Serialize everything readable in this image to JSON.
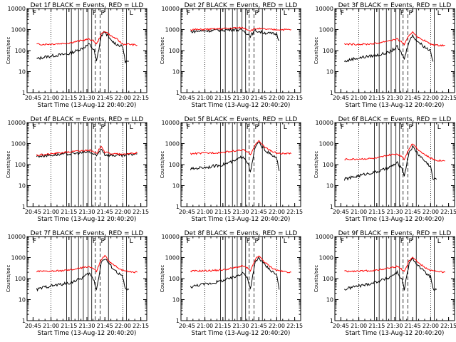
{
  "colors": {
    "events": "#000000",
    "lld": "#ff0000",
    "background": "#ffffff",
    "axis": "#000000"
  },
  "chart_data": [
    {
      "type": "line",
      "title": "Det 1f BLACK = Events, RED = LLD",
      "xlabel": "Start Time (13-Aug-12 20:40:20)",
      "ylabel": "Counts/sec",
      "yscale": "log",
      "ylim": [
        1,
        10000
      ],
      "y_ticks": [
        "1",
        "10",
        "100",
        "1000",
        "10000"
      ],
      "x_ticks": [
        "20:45",
        "21:00",
        "21:15",
        "21:30",
        "21:45",
        "22:00",
        "22:15"
      ],
      "x_range": [
        "20:40",
        "22:20"
      ],
      "marker_labels": [
        "F",
        "P",
        "F",
        "L"
      ],
      "series": [
        {
          "name": "Events",
          "color": "#000000",
          "x": [
            "20:48",
            "20:55",
            "21:05",
            "21:15",
            "21:25",
            "21:32",
            "21:36",
            "21:38",
            "21:42",
            "21:45",
            "21:50",
            "21:55",
            "22:00",
            "22:02",
            "22:05"
          ],
          "values": [
            40,
            50,
            60,
            70,
            120,
            200,
            100,
            30,
            500,
            800,
            300,
            200,
            150,
            30,
            30
          ]
        },
        {
          "name": "LLD",
          "color": "#ff0000",
          "x": [
            "20:48",
            "20:55",
            "21:05",
            "21:15",
            "21:25",
            "21:32",
            "21:36",
            "21:38",
            "21:42",
            "21:45",
            "21:50",
            "21:55",
            "22:00",
            "22:05",
            "22:12"
          ],
          "values": [
            200,
            200,
            210,
            230,
            300,
            350,
            280,
            200,
            600,
            850,
            500,
            350,
            200,
            200,
            180
          ]
        }
      ]
    },
    {
      "type": "line",
      "title": "Det 2f BLACK = Events, RED = LLD",
      "xlabel": "Start Time (13-Aug-12 20:40:20)",
      "ylabel": "Counts/sec",
      "yscale": "log",
      "ylim": [
        1,
        10000
      ],
      "y_ticks": [
        "1",
        "10",
        "100",
        "1000",
        "10000"
      ],
      "x_ticks": [
        "20:45",
        "21:00",
        "21:15",
        "21:30",
        "21:45",
        "22:00",
        "22:15"
      ],
      "x_range": [
        "20:40",
        "22:20"
      ],
      "marker_labels": [
        "F",
        "P",
        "F",
        "L"
      ],
      "series": [
        {
          "name": "Events",
          "color": "#000000",
          "x": [
            "20:48",
            "20:55",
            "21:05",
            "21:15",
            "21:25",
            "21:32",
            "21:36",
            "21:38",
            "21:42",
            "21:45",
            "21:50",
            "21:55",
            "22:00",
            "22:02"
          ],
          "values": [
            800,
            850,
            900,
            950,
            1000,
            900,
            600,
            500,
            900,
            800,
            700,
            650,
            600,
            300
          ]
        },
        {
          "name": "LLD",
          "color": "#ff0000",
          "x": [
            "20:48",
            "20:55",
            "21:05",
            "21:15",
            "21:25",
            "21:32",
            "21:36",
            "21:38",
            "21:42",
            "21:45",
            "21:50",
            "21:55",
            "22:00",
            "22:05",
            "22:12"
          ],
          "values": [
            1000,
            1000,
            1050,
            1100,
            1200,
            1200,
            1000,
            900,
            1100,
            1100,
            1050,
            1000,
            1000,
            1000,
            1000
          ]
        }
      ]
    },
    {
      "type": "line",
      "title": "Det 3f BLACK = Events, RED = LLD",
      "xlabel": "Start Time (13-Aug-12 20:40:20)",
      "ylabel": "Counts/sec",
      "yscale": "log",
      "ylim": [
        1,
        10000
      ],
      "y_ticks": [
        "1",
        "10",
        "100",
        "1000",
        "10000"
      ],
      "x_ticks": [
        "20:45",
        "21:00",
        "21:15",
        "21:30",
        "21:45",
        "22:00",
        "22:15"
      ],
      "x_range": [
        "20:40",
        "22:20"
      ],
      "marker_labels": [
        "F",
        "P",
        "F",
        "L"
      ],
      "series": [
        {
          "name": "Events",
          "color": "#000000",
          "x": [
            "20:48",
            "20:55",
            "21:05",
            "21:15",
            "21:25",
            "21:32",
            "21:36",
            "21:38",
            "21:42",
            "21:45",
            "21:50",
            "21:55",
            "22:00",
            "22:02"
          ],
          "values": [
            30,
            40,
            50,
            60,
            80,
            150,
            70,
            40,
            300,
            500,
            250,
            150,
            100,
            30
          ]
        },
        {
          "name": "LLD",
          "color": "#ff0000",
          "x": [
            "20:48",
            "20:55",
            "21:05",
            "21:15",
            "21:25",
            "21:32",
            "21:36",
            "21:38",
            "21:42",
            "21:45",
            "21:50",
            "21:55",
            "22:00",
            "22:05",
            "22:12"
          ],
          "values": [
            200,
            200,
            200,
            220,
            300,
            350,
            250,
            200,
            500,
            800,
            400,
            300,
            200,
            180,
            180
          ]
        }
      ]
    },
    {
      "type": "line",
      "title": "Det 4f BLACK = Events, RED = LLD",
      "xlabel": "Start Time (13-Aug-12 20:40:20)",
      "ylabel": "Counts/sec",
      "yscale": "log",
      "ylim": [
        1,
        10000
      ],
      "y_ticks": [
        "1",
        "10",
        "100",
        "1000",
        "10000"
      ],
      "x_ticks": [
        "20:45",
        "21:00",
        "21:15",
        "21:30",
        "21:45",
        "22:00",
        "22:15"
      ],
      "x_range": [
        "20:40",
        "22:20"
      ],
      "marker_labels": [
        "F",
        "P",
        "F",
        "L"
      ],
      "series": [
        {
          "name": "Events",
          "color": "#000000",
          "x": [
            "20:48",
            "20:55",
            "21:05",
            "21:15",
            "21:25",
            "21:32",
            "21:36",
            "21:38",
            "21:42",
            "21:45",
            "21:50",
            "21:55",
            "22:00",
            "22:05",
            "22:12"
          ],
          "values": [
            250,
            270,
            300,
            320,
            360,
            400,
            300,
            250,
            600,
            300,
            280,
            270,
            260,
            300,
            330
          ]
        },
        {
          "name": "LLD",
          "color": "#ff0000",
          "x": [
            "20:48",
            "20:55",
            "21:05",
            "21:15",
            "21:25",
            "21:32",
            "21:36",
            "21:38",
            "21:42",
            "21:45",
            "21:50",
            "21:55",
            "22:00",
            "22:05",
            "22:12"
          ],
          "values": [
            280,
            300,
            350,
            400,
            450,
            500,
            380,
            320,
            800,
            380,
            340,
            320,
            300,
            340,
            360
          ]
        }
      ]
    },
    {
      "type": "line",
      "title": "Det 5f BLACK = Events, RED = LLD",
      "xlabel": "Start Time (13-Aug-12 20:40:20)",
      "ylabel": "Counts/sec",
      "yscale": "log",
      "ylim": [
        1,
        10000
      ],
      "y_ticks": [
        "1",
        "10",
        "100",
        "1000",
        "10000"
      ],
      "x_ticks": [
        "20:45",
        "21:00",
        "21:15",
        "21:30",
        "21:45",
        "22:00",
        "22:15"
      ],
      "x_range": [
        "20:40",
        "22:20"
      ],
      "marker_labels": [
        "F",
        "P",
        "F",
        "L"
      ],
      "series": [
        {
          "name": "Events",
          "color": "#000000",
          "x": [
            "20:48",
            "20:55",
            "21:05",
            "21:15",
            "21:25",
            "21:32",
            "21:36",
            "21:38",
            "21:42",
            "21:45",
            "21:50",
            "21:55",
            "22:00",
            "22:02"
          ],
          "values": [
            60,
            70,
            80,
            100,
            150,
            250,
            120,
            40,
            700,
            1100,
            500,
            300,
            200,
            50
          ]
        },
        {
          "name": "LLD",
          "color": "#ff0000",
          "x": [
            "20:48",
            "20:55",
            "21:05",
            "21:15",
            "21:25",
            "21:32",
            "21:36",
            "21:38",
            "21:42",
            "21:45",
            "21:50",
            "21:55",
            "22:00",
            "22:05",
            "22:12"
          ],
          "values": [
            330,
            340,
            360,
            380,
            450,
            500,
            380,
            300,
            900,
            1300,
            700,
            450,
            350,
            330,
            330
          ]
        }
      ]
    },
    {
      "type": "line",
      "title": "Det 6f BLACK = Events, RED = LLD",
      "xlabel": "Start Time (13-Aug-12 20:40:20)",
      "ylabel": "Counts/sec",
      "yscale": "log",
      "ylim": [
        1,
        10000
      ],
      "y_ticks": [
        "1",
        "10",
        "100",
        "1000",
        "10000"
      ],
      "x_ticks": [
        "20:45",
        "21:00",
        "21:15",
        "21:30",
        "21:45",
        "22:00",
        "22:15"
      ],
      "x_range": [
        "20:40",
        "22:20"
      ],
      "marker_labels": [
        "F",
        "P",
        "F",
        "L"
      ],
      "series": [
        {
          "name": "Events",
          "color": "#000000",
          "x": [
            "20:48",
            "20:55",
            "21:05",
            "21:15",
            "21:25",
            "21:32",
            "21:36",
            "21:38",
            "21:42",
            "21:45",
            "21:50",
            "21:55",
            "22:00",
            "22:02",
            "22:05"
          ],
          "values": [
            20,
            25,
            35,
            45,
            70,
            120,
            60,
            30,
            400,
            700,
            300,
            150,
            80,
            20,
            20
          ]
        },
        {
          "name": "LLD",
          "color": "#ff0000",
          "x": [
            "20:48",
            "20:55",
            "21:05",
            "21:15",
            "21:25",
            "21:32",
            "21:36",
            "21:38",
            "21:42",
            "21:45",
            "21:50",
            "21:55",
            "22:00",
            "22:05",
            "22:12"
          ],
          "values": [
            180,
            180,
            190,
            200,
            280,
            320,
            250,
            180,
            600,
            1000,
            500,
            300,
            200,
            160,
            150
          ]
        }
      ]
    },
    {
      "type": "line",
      "title": "Det 7f BLACK = Events, RED = LLD",
      "xlabel": "Start Time (13-Aug-12 20:40:20)",
      "ylabel": "Counts/sec",
      "yscale": "log",
      "ylim": [
        1,
        10000
      ],
      "y_ticks": [
        "1",
        "10",
        "100",
        "1000",
        "10000"
      ],
      "x_ticks": [
        "20:45",
        "21:00",
        "21:15",
        "21:30",
        "21:45",
        "22:00",
        "22:15"
      ],
      "x_range": [
        "20:40",
        "22:20"
      ],
      "marker_labels": [
        "F",
        "P",
        "F",
        "L"
      ],
      "series": [
        {
          "name": "Events",
          "color": "#000000",
          "x": [
            "20:48",
            "20:55",
            "21:05",
            "21:15",
            "21:25",
            "21:32",
            "21:36",
            "21:38",
            "21:42",
            "21:45",
            "21:50",
            "21:55",
            "22:00",
            "22:02",
            "22:05"
          ],
          "values": [
            30,
            40,
            50,
            60,
            100,
            180,
            80,
            30,
            600,
            900,
            400,
            200,
            120,
            30,
            30
          ]
        },
        {
          "name": "LLD",
          "color": "#ff0000",
          "x": [
            "20:48",
            "20:55",
            "21:05",
            "21:15",
            "21:25",
            "21:32",
            "21:36",
            "21:38",
            "21:42",
            "21:45",
            "21:50",
            "21:55",
            "22:00",
            "22:05",
            "22:12"
          ],
          "values": [
            220,
            220,
            230,
            250,
            320,
            380,
            280,
            220,
            800,
            1200,
            550,
            350,
            250,
            220,
            200
          ]
        }
      ]
    },
    {
      "type": "line",
      "title": "Det 8f BLACK = Events, RED = LLD",
      "xlabel": "Start Time (13-Aug-12 20:40:20)",
      "ylabel": "Counts/sec",
      "yscale": "log",
      "ylim": [
        1,
        10000
      ],
      "y_ticks": [
        "1",
        "10",
        "100",
        "1000",
        "10000"
      ],
      "x_ticks": [
        "20:45",
        "21:00",
        "21:15",
        "21:30",
        "21:45",
        "22:00",
        "22:15"
      ],
      "x_range": [
        "20:40",
        "22:20"
      ],
      "marker_labels": [
        "F",
        "P",
        "F",
        "L"
      ],
      "series": [
        {
          "name": "Events",
          "color": "#000000",
          "x": [
            "20:48",
            "20:55",
            "21:05",
            "21:15",
            "21:25",
            "21:32",
            "21:36",
            "21:38",
            "21:42",
            "21:45",
            "21:50",
            "21:55",
            "22:00",
            "22:02"
          ],
          "values": [
            40,
            50,
            60,
            80,
            120,
            200,
            90,
            30,
            600,
            1000,
            450,
            250,
            150,
            30
          ]
        },
        {
          "name": "LLD",
          "color": "#ff0000",
          "x": [
            "20:48",
            "20:55",
            "21:05",
            "21:15",
            "21:25",
            "21:32",
            "21:36",
            "21:38",
            "21:42",
            "21:45",
            "21:50",
            "21:55",
            "22:00",
            "22:05",
            "22:12"
          ],
          "values": [
            230,
            230,
            240,
            260,
            330,
            400,
            300,
            220,
            800,
            1200,
            600,
            350,
            250,
            220,
            200
          ]
        }
      ]
    },
    {
      "type": "line",
      "title": "Det 9f BLACK = Events, RED = LLD",
      "xlabel": "Start Time (13-Aug-12 20:40:20)",
      "ylabel": "Counts/sec",
      "yscale": "log",
      "ylim": [
        1,
        10000
      ],
      "y_ticks": [
        "1",
        "10",
        "100",
        "1000",
        "10000"
      ],
      "x_ticks": [
        "20:45",
        "21:00",
        "21:15",
        "21:30",
        "21:45",
        "22:00",
        "22:15"
      ],
      "x_range": [
        "20:40",
        "22:20"
      ],
      "marker_labels": [
        "F",
        "P",
        "F",
        "L"
      ],
      "series": [
        {
          "name": "Events",
          "color": "#000000",
          "x": [
            "20:48",
            "20:55",
            "21:05",
            "21:15",
            "21:25",
            "21:32",
            "21:36",
            "21:38",
            "21:42",
            "21:45",
            "21:50",
            "21:55",
            "22:00",
            "22:02",
            "22:05"
          ],
          "values": [
            30,
            40,
            50,
            70,
            110,
            200,
            90,
            30,
            500,
            900,
            400,
            200,
            120,
            30,
            30
          ]
        },
        {
          "name": "LLD",
          "color": "#ff0000",
          "x": [
            "20:48",
            "20:55",
            "21:05",
            "21:15",
            "21:25",
            "21:32",
            "21:36",
            "21:38",
            "21:42",
            "21:45",
            "21:50",
            "21:55",
            "22:00",
            "22:05",
            "22:12"
          ],
          "values": [
            220,
            220,
            230,
            250,
            320,
            380,
            280,
            220,
            700,
            1100,
            550,
            350,
            250,
            220,
            200
          ]
        }
      ]
    }
  ]
}
